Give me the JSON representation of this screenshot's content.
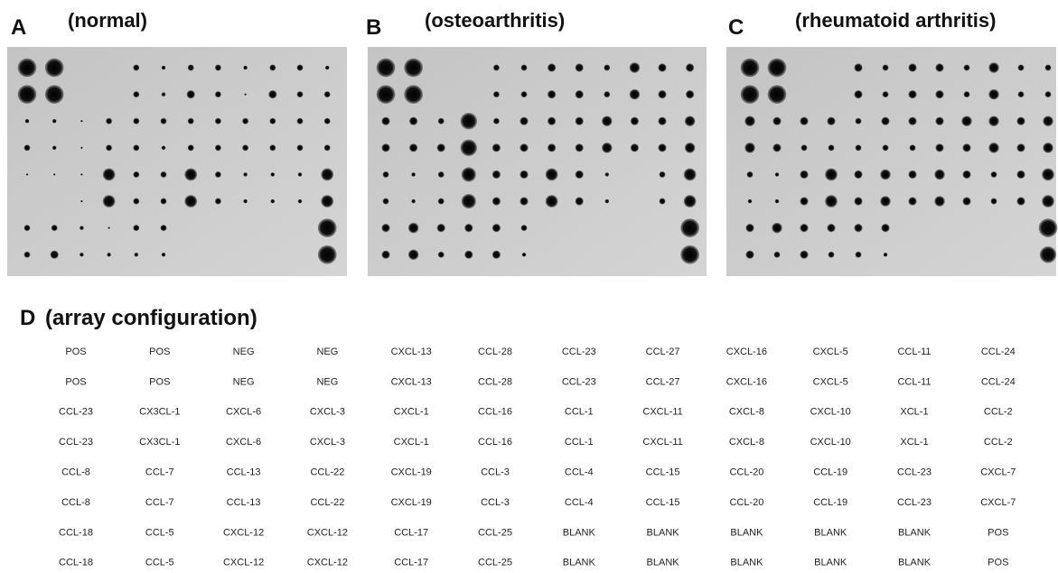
{
  "panels": [
    {
      "letter": "A",
      "label": "(normal)"
    },
    {
      "letter": "B",
      "label": "(osteoarthritis)"
    },
    {
      "letter": "C",
      "label": "(rheumatoid arthritis)"
    }
  ],
  "configuration": {
    "letter": "D",
    "label": "(array configuration)",
    "rows": [
      [
        "POS",
        "POS",
        "NEG",
        "NEG",
        "CXCL-13",
        "CCL-28",
        "CCL-23",
        "CCL-27",
        "CXCL-16",
        "CXCL-5",
        "CCL-11",
        "CCL-24"
      ],
      [
        "POS",
        "POS",
        "NEG",
        "NEG",
        "CXCL-13",
        "CCL-28",
        "CCL-23",
        "CCL-27",
        "CXCL-16",
        "CXCL-5",
        "CCL-11",
        "CCL-24"
      ],
      [
        "CCL-23",
        "CX3CL-1",
        "CXCL-6",
        "CXCL-3",
        "CXCL-1",
        "CCL-16",
        "CCL-1",
        "CXCL-11",
        "CXCL-8",
        "CXCL-10",
        "XCL-1",
        "CCL-2"
      ],
      [
        "CCL-23",
        "CX3CL-1",
        "CXCL-6",
        "CXCL-3",
        "CXCL-1",
        "CCL-16",
        "CCL-1",
        "CXCL-11",
        "CXCL-8",
        "CXCL-10",
        "XCL-1",
        "CCL-2"
      ],
      [
        "CCL-8",
        "CCL-7",
        "CCL-13",
        "CCL-22",
        "CXCL-19",
        "CCL-3",
        "CCL-4",
        "CCL-15",
        "CCL-20",
        "CCL-19",
        "CCL-23",
        "CXCL-7"
      ],
      [
        "CCL-8",
        "CCL-7",
        "CCL-13",
        "CCL-22",
        "CXCL-19",
        "CCL-3",
        "CCL-4",
        "CCL-15",
        "CCL-20",
        "CCL-19",
        "CCL-23",
        "CXCL-7"
      ],
      [
        "CCL-18",
        "CCL-5",
        "CXCL-12",
        "CXCL-12",
        "CCL-17",
        "CCL-25",
        "BLANK",
        "BLANK",
        "BLANK",
        "BLANK",
        "BLANK",
        "POS"
      ],
      [
        "CCL-18",
        "CCL-5",
        "CXCL-12",
        "CXCL-12",
        "CCL-17",
        "CCL-25",
        "BLANK",
        "BLANK",
        "BLANK",
        "BLANK",
        "BLANK",
        "POS"
      ]
    ]
  }
}
